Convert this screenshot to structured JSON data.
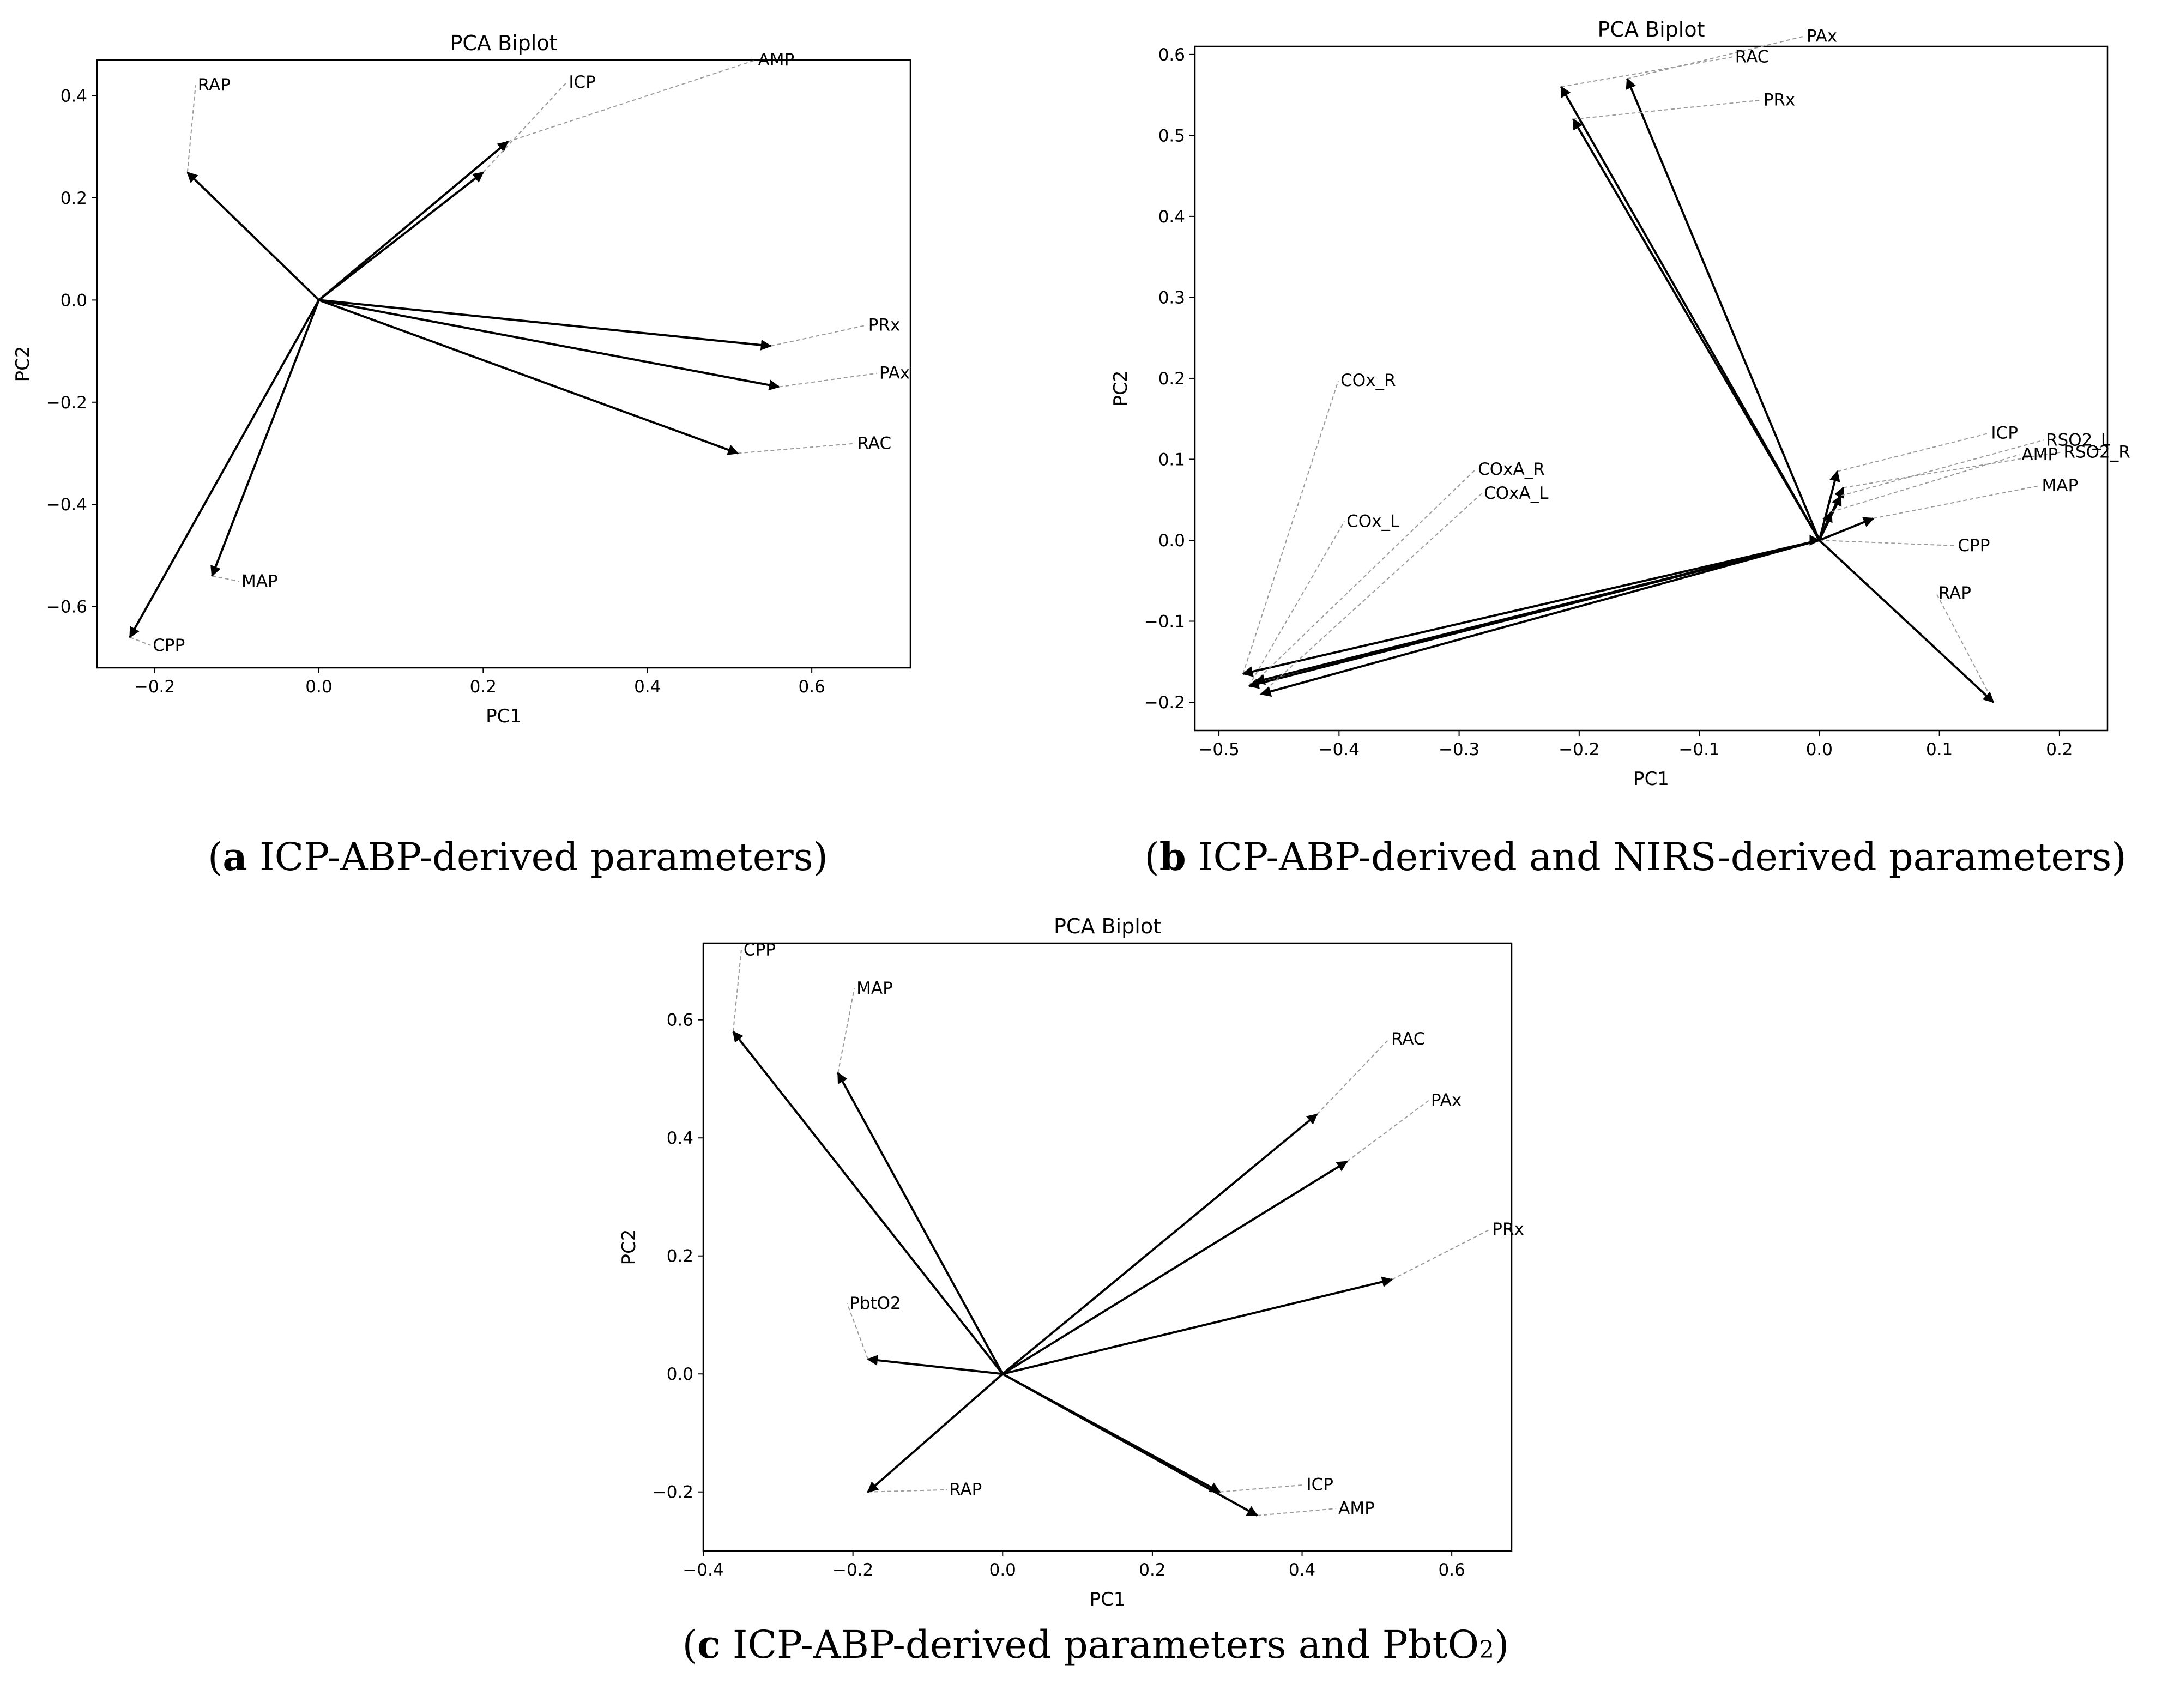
{
  "chart_data": [
    {
      "type": "biplot",
      "title": "PCA Biplot",
      "xlabel": "PC1",
      "ylabel": "PC2",
      "xlim": [
        -0.27,
        0.72
      ],
      "ylim": [
        -0.72,
        0.47
      ],
      "xticks": [
        -0.2,
        0.0,
        0.2,
        0.4,
        0.6
      ],
      "yticks": [
        -0.6,
        -0.4,
        -0.2,
        0.0,
        0.2,
        0.4
      ],
      "grid": false,
      "loadings": [
        {
          "name": "RAP",
          "x": -0.16,
          "y": 0.25
        },
        {
          "name": "AMP",
          "x": 0.23,
          "y": 0.31
        },
        {
          "name": "ICP",
          "x": 0.2,
          "y": 0.25
        },
        {
          "name": "PRx",
          "x": 0.55,
          "y": -0.09
        },
        {
          "name": "PAx",
          "x": 0.56,
          "y": -0.17
        },
        {
          "name": "RAC",
          "x": 0.51,
          "y": -0.3
        },
        {
          "name": "MAP",
          "x": -0.13,
          "y": -0.54
        },
        {
          "name": "CPP",
          "x": -0.23,
          "y": -0.66
        }
      ],
      "caption": {
        "letter": "a",
        "text": " ICP-ABP-derived parameters"
      }
    },
    {
      "type": "biplot",
      "title": "PCA Biplot",
      "xlabel": "PC1",
      "ylabel": "PC2",
      "xlim": [
        -0.52,
        0.24
      ],
      "ylim": [
        -0.235,
        0.61
      ],
      "xticks": [
        -0.5,
        -0.4,
        -0.3,
        -0.2,
        -0.1,
        0.0,
        0.1,
        0.2
      ],
      "yticks": [
        -0.2,
        -0.1,
        0.0,
        0.1,
        0.2,
        0.3,
        0.4,
        0.5,
        0.6
      ],
      "grid": false,
      "loadings": [
        {
          "name": "PAx",
          "x": -0.16,
          "y": 0.57
        },
        {
          "name": "RAC",
          "x": -0.215,
          "y": 0.56
        },
        {
          "name": "PRx",
          "x": -0.205,
          "y": 0.52
        },
        {
          "name": "ICP",
          "x": 0.015,
          "y": 0.085
        },
        {
          "name": "RSO2_R",
          "x": 0.02,
          "y": 0.065
        },
        {
          "name": "RSO2_L",
          "x": 0.018,
          "y": 0.055
        },
        {
          "name": "AMP",
          "x": 0.01,
          "y": 0.035
        },
        {
          "name": "MAP",
          "x": 0.045,
          "y": 0.027
        },
        {
          "name": "CPP",
          "x": 0.0,
          "y": 0.0
        },
        {
          "name": "RAP",
          "x": 0.145,
          "y": -0.2
        },
        {
          "name": "COx_R",
          "x": -0.48,
          "y": -0.165
        },
        {
          "name": "COx_L",
          "x": -0.475,
          "y": -0.18
        },
        {
          "name": "COxA_R",
          "x": -0.47,
          "y": -0.175
        },
        {
          "name": "COxA_L",
          "x": -0.465,
          "y": -0.19
        }
      ],
      "caption": {
        "letter": "b",
        "text": " ICP-ABP-derived and NIRS-derived parameters"
      }
    },
    {
      "type": "biplot",
      "title": "PCA Biplot",
      "xlabel": "PC1",
      "ylabel": "PC2",
      "xlim": [
        -0.4,
        0.68
      ],
      "ylim": [
        -0.3,
        0.73
      ],
      "xticks": [
        -0.4,
        -0.2,
        0.0,
        0.2,
        0.4,
        0.6
      ],
      "yticks": [
        -0.2,
        0.0,
        0.2,
        0.4,
        0.6
      ],
      "grid": false,
      "loadings": [
        {
          "name": "CPP",
          "x": -0.36,
          "y": 0.58
        },
        {
          "name": "MAP",
          "x": -0.22,
          "y": 0.51
        },
        {
          "name": "RAC",
          "x": 0.42,
          "y": 0.44
        },
        {
          "name": "PAx",
          "x": 0.46,
          "y": 0.36
        },
        {
          "name": "PRx",
          "x": 0.52,
          "y": 0.16
        },
        {
          "name": "PbtO2",
          "x": -0.18,
          "y": 0.025
        },
        {
          "name": "RAP",
          "x": -0.18,
          "y": -0.2
        },
        {
          "name": "ICP",
          "x": 0.29,
          "y": -0.2
        },
        {
          "name": "AMP",
          "x": 0.34,
          "y": -0.24
        }
      ],
      "caption": {
        "letter": "c",
        "text": " ICP-ABP-derived parameters and PbtO",
        "sub": "2"
      }
    }
  ]
}
